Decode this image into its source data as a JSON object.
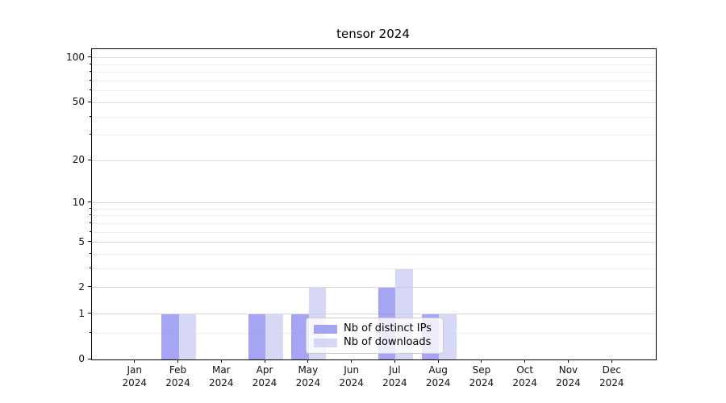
{
  "chart_data": {
    "type": "bar",
    "title": "tensor 2024",
    "months": [
      "Jan",
      "Feb",
      "Mar",
      "Apr",
      "May",
      "Jun",
      "Jul",
      "Aug",
      "Sep",
      "Oct",
      "Nov",
      "Dec"
    ],
    "year_label": "2024",
    "series": [
      {
        "name": "Nb of distinct IPs",
        "color": "#8282ee",
        "values": [
          0,
          1,
          0,
          1,
          1,
          0,
          2,
          1,
          0,
          0,
          0,
          0
        ]
      },
      {
        "name": "Nb of downloads",
        "color": "#c8c8f3",
        "values": [
          0,
          1,
          0,
          1,
          2,
          0,
          3,
          1,
          0,
          0,
          0,
          0
        ]
      }
    ],
    "bar_opacity": 0.72,
    "y_axis": {
      "scale": "log1p",
      "major_ticks": [
        0,
        1,
        2,
        5,
        10,
        20,
        50,
        100
      ],
      "minor_gridlines": [
        0.5,
        3,
        4,
        6,
        7,
        8,
        9,
        30,
        40,
        60,
        70,
        80,
        90
      ],
      "top_value": 115
    },
    "grid": {
      "major_color": "#d9d9d9",
      "minor_color": "#ededed"
    },
    "legend": {
      "position": "lower center",
      "background": "#ffffff",
      "border_color": "#cccccc"
    }
  }
}
